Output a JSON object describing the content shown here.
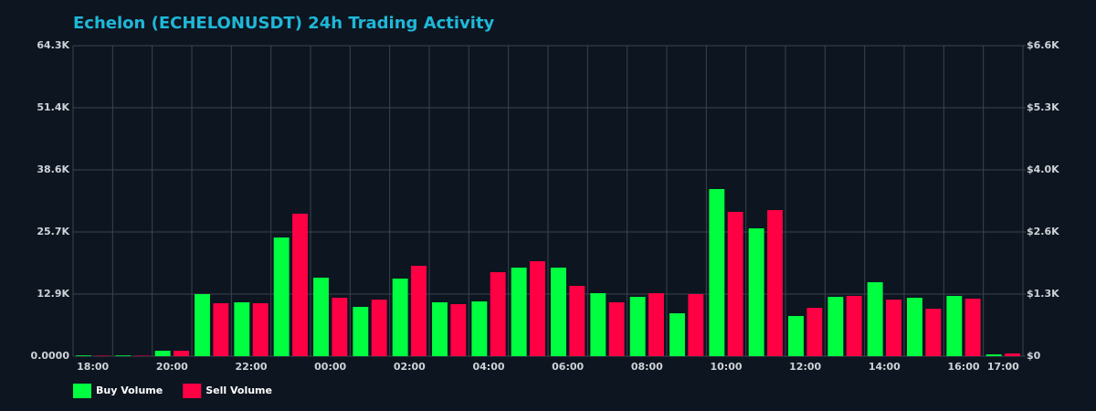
{
  "chart_data": {
    "type": "bar",
    "title": "Echelon (ECHELONUSDT) 24h Trading Activity",
    "categories": [
      "18:00",
      null,
      "20:00",
      null,
      "22:00",
      null,
      "00:00",
      null,
      "02:00",
      null,
      "04:00",
      null,
      "06:00",
      null,
      "08:00",
      null,
      "10:00",
      null,
      "12:00",
      null,
      "14:00",
      null,
      "16:00",
      "17:00"
    ],
    "series": [
      {
        "name": "Buy Volume",
        "color": "#00ff41",
        "values": [
          150,
          150,
          1130,
          12860,
          11160,
          24580,
          16260,
          10210,
          16070,
          11160,
          11350,
          18340,
          18340,
          13050,
          12290,
          8890,
          34610,
          26470,
          8320,
          12290,
          15320,
          12100,
          12480,
          380
        ]
      },
      {
        "name": "Sell Volume",
        "color": "#ff0044",
        "values": [
          100,
          100,
          1130,
          10970,
          10970,
          29500,
          12100,
          11720,
          18720,
          10780,
          17400,
          19670,
          14560,
          11160,
          13050,
          12860,
          29880,
          30260,
          10020,
          12480,
          11720,
          9830,
          11910,
          570
        ]
      }
    ],
    "ylim": [
      0,
      64300
    ],
    "yticks": [
      {
        "value": 0,
        "label": "0.0000"
      },
      {
        "value": 12860,
        "label": "12.9K"
      },
      {
        "value": 25720,
        "label": "25.7K"
      },
      {
        "value": 38580,
        "label": "38.6K"
      },
      {
        "value": 51440,
        "label": "51.4K"
      },
      {
        "value": 64300,
        "label": "64.3K"
      }
    ],
    "y2lim": [
      0,
      6600
    ],
    "y2ticks": [
      {
        "value": 0,
        "label": "$0"
      },
      {
        "value": 1320,
        "label": "$1.3K"
      },
      {
        "value": 2640,
        "label": "$2.6K"
      },
      {
        "value": 3960,
        "label": "$4.0K"
      },
      {
        "value": 5280,
        "label": "$5.3K"
      },
      {
        "value": 6600,
        "label": "$6.6K"
      }
    ],
    "grid": true,
    "legend": "bottom-left"
  }
}
